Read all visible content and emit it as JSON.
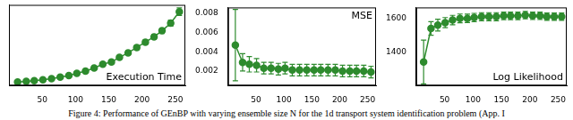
{
  "chart_data": [
    {
      "type": "line",
      "title": "Execution Time",
      "marker": "circle",
      "line_style": "solid",
      "color": "#2e8b2e",
      "tick_labels": "x",
      "x": [
        13,
        26,
        38,
        51,
        64,
        77,
        90,
        102,
        115,
        128,
        141,
        154,
        166,
        179,
        192,
        205,
        218,
        230,
        243,
        256
      ],
      "values": [
        0.5,
        1.5,
        2.5,
        3.5,
        5,
        7,
        9,
        12,
        15,
        19,
        24,
        27,
        33,
        39,
        46,
        53,
        60,
        68,
        78,
        93
      ],
      "errors": [
        0.3,
        0.5,
        0.6,
        0.7,
        0.8,
        1,
        1.2,
        1.4,
        1.6,
        1.8,
        2,
        2.2,
        2.4,
        2.6,
        2.8,
        3,
        3.3,
        3.6,
        4,
        5
      ],
      "xlim": [
        0,
        265
      ],
      "xticks": [
        50,
        100,
        150,
        200,
        250
      ],
      "ylim": [
        -4,
        102
      ]
    },
    {
      "type": "line",
      "title": "MSE",
      "marker": "circle",
      "line_style": "solid",
      "color": "#2e8b2e",
      "x": [
        13,
        26,
        38,
        51,
        64,
        77,
        90,
        102,
        115,
        128,
        141,
        154,
        166,
        179,
        192,
        205,
        218,
        230,
        243,
        256
      ],
      "values": [
        0.0047,
        0.0029,
        0.0027,
        0.0026,
        0.0023,
        0.0023,
        0.0022,
        0.0023,
        0.0021,
        0.0021,
        0.0021,
        0.0021,
        0.0021,
        0.0021,
        0.0021,
        0.002,
        0.002,
        0.002,
        0.002,
        0.0019
      ],
      "errors": [
        0.0037,
        0.0009,
        0.0008,
        0.0007,
        0.0006,
        0.0006,
        0.0006,
        0.0006,
        0.0006,
        0.0006,
        0.0006,
        0.0006,
        0.0006,
        0.0006,
        0.0006,
        0.0006,
        0.0006,
        0.0006,
        0.0006,
        0.0006
      ],
      "xlim": [
        0,
        265
      ],
      "xticks": [
        50,
        100,
        150,
        200,
        250
      ],
      "ylim": [
        0.0005,
        0.0086
      ],
      "yticks": [
        0.002,
        0.004,
        0.006,
        0.008
      ]
    },
    {
      "type": "line",
      "title": "Log Likelihood",
      "marker": "circle",
      "line_style": "solid",
      "color": "#2e8b2e",
      "x": [
        13,
        26,
        38,
        51,
        64,
        77,
        90,
        102,
        115,
        128,
        141,
        154,
        166,
        179,
        192,
        205,
        218,
        230,
        243,
        256
      ],
      "values": [
        1340,
        1540,
        1560,
        1575,
        1590,
        1600,
        1600,
        1605,
        1610,
        1610,
        1610,
        1615,
        1615,
        1615,
        1620,
        1615,
        1615,
        1610,
        1610,
        1610
      ],
      "errors": [
        130,
        40,
        35,
        30,
        28,
        26,
        25,
        25,
        24,
        24,
        24,
        23,
        23,
        23,
        22,
        22,
        22,
        22,
        22,
        22
      ],
      "xlim": [
        0,
        265
      ],
      "xticks": [
        50,
        100,
        150,
        200,
        250
      ],
      "ylim": [
        1200,
        1665
      ],
      "yticks": [
        1400,
        1600
      ]
    }
  ],
  "caption": "Figure 4: Performance of GEnBP with varying ensemble size N for the 1d transport system identification problem (App. I"
}
